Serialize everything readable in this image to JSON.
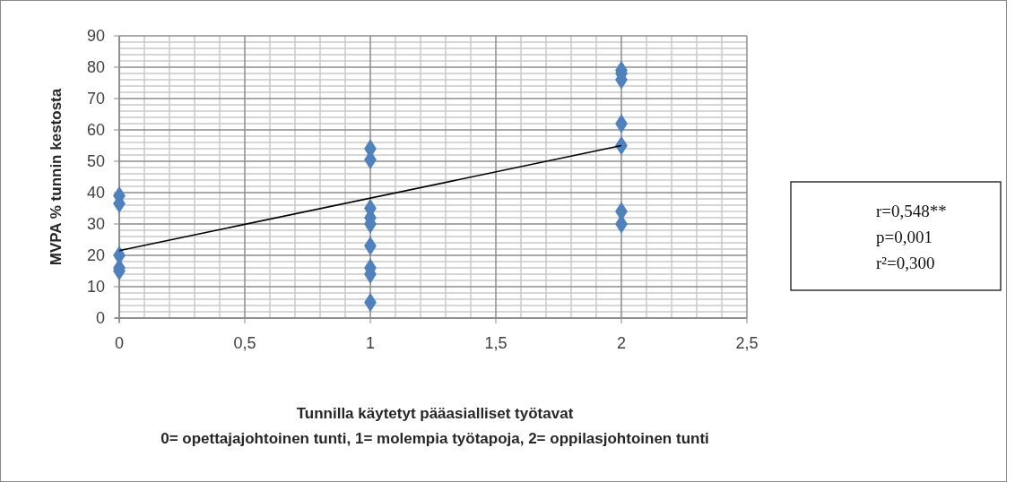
{
  "chart_data": {
    "type": "scatter",
    "xlabel": "Tunnilla käytetyt pääasialliset työtavat\n0= opettajajohtoinen tunti, 1= molempia työtapoja, 2= oppilasjohtoinen tunti",
    "ylabel": "MVPA % tunnin kestosta",
    "xlim": [
      0,
      2.5
    ],
    "xticks": [
      0,
      {
        "value": 0.5,
        "label": "0,5"
      },
      1,
      {
        "value": 1.5,
        "label": "1,5"
      },
      2,
      {
        "value": 2.5,
        "label": "2,5"
      }
    ],
    "ylim": [
      0,
      90
    ],
    "yticks": [
      0,
      10,
      20,
      30,
      40,
      50,
      60,
      70,
      80,
      90
    ],
    "grid": true,
    "series": [
      {
        "marker": "diamond",
        "color": "#4f81bd",
        "x": [
          0,
          0,
          0,
          0,
          0,
          1,
          1,
          1,
          1,
          1,
          1,
          1,
          1,
          1,
          2,
          2,
          2,
          2,
          2,
          2,
          2
        ],
        "values": [
          39,
          36.5,
          20,
          16,
          15,
          54,
          50.5,
          35,
          32,
          30,
          23,
          16,
          14,
          5,
          79,
          78,
          76,
          62,
          55,
          34,
          30
        ]
      },
      {
        "type": "line",
        "color": "#000000",
        "x": [
          0,
          2
        ],
        "values": [
          21.5,
          55
        ]
      }
    ],
    "annotations": [
      "r=0,548**",
      "p=0,001",
      "r²=0,300"
    ]
  }
}
